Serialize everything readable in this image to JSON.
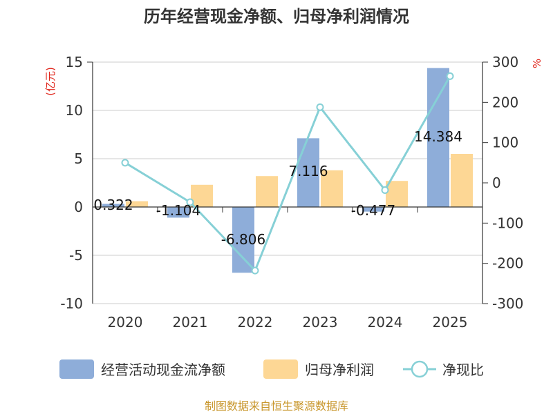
{
  "chart_data": {
    "type": "bar+line",
    "title": "历年经营现金净额、归母净利润情况",
    "categories": [
      "2020",
      "2021",
      "2022",
      "2023",
      "2024",
      "2025"
    ],
    "left_axis": {
      "unit": "(亿元)",
      "ylim": [
        -10,
        15
      ],
      "ticks": [
        "15",
        "10",
        "5",
        "0",
        "-5",
        "-10"
      ]
    },
    "right_axis": {
      "unit": "%",
      "ylim": [
        -300,
        300
      ],
      "ticks": [
        "300",
        "200",
        "100",
        "0",
        "-100",
        "-200",
        "-300"
      ]
    },
    "series": [
      {
        "name": "经营活动现金流净额",
        "type": "bar",
        "axis": "left",
        "color": "#8eadd9",
        "values": [
          0.322,
          -1.104,
          -6.806,
          7.116,
          -0.477,
          14.384
        ],
        "labels": [
          "0.322",
          "-1.104",
          "-6.806",
          "7.116",
          "-0.477",
          "14.384"
        ]
      },
      {
        "name": "归母净利润",
        "type": "bar",
        "axis": "left",
        "color": "#fdd795",
        "values": [
          0.6,
          2.3,
          3.2,
          3.8,
          2.7,
          5.5
        ]
      },
      {
        "name": "净现比",
        "type": "line",
        "axis": "right",
        "color": "#86d0d6",
        "values": [
          50,
          -48,
          -218,
          188,
          -18,
          265
        ]
      }
    ],
    "legend_position": "bottom",
    "source": "制图数据来自恒生聚源数据库",
    "colors": {
      "grid": "#cccccc",
      "axis": "#333333",
      "unit": "#e0241a",
      "source": "#c8962b"
    }
  }
}
